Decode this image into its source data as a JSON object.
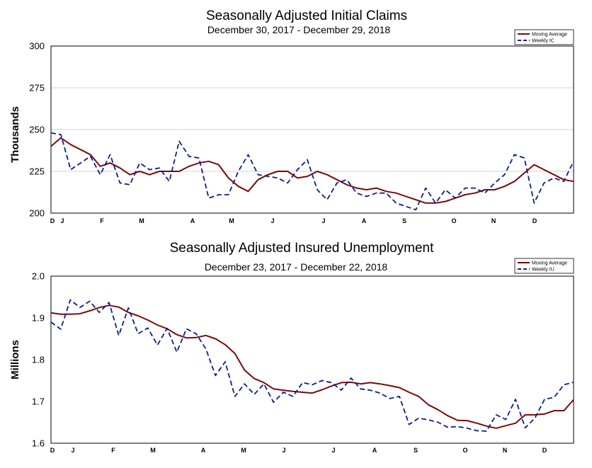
{
  "colors": {
    "moving_average": "#7a0a0a",
    "weekly": "#0b1f8a",
    "grid": "#d0d0d0"
  },
  "chart_data": [
    {
      "type": "line",
      "title": "Seasonally Adjusted Initial Claims",
      "subtitle": "December 30, 2017 - December 29, 2018",
      "ylabel": "Thousands",
      "ylim": [
        200,
        300
      ],
      "yticks": [
        "200",
        "225",
        "250",
        "275",
        "300"
      ],
      "xticks": [
        "D",
        "J",
        "F",
        "M",
        "A",
        "M",
        "J",
        "J",
        "A",
        "S",
        "O",
        "N",
        "D"
      ],
      "grid": true,
      "legend": "top-right",
      "series": [
        {
          "name": "Moving Average",
          "style": "solid",
          "values": [
            240,
            245,
            241,
            238,
            235,
            228,
            230,
            227,
            223,
            225,
            223,
            225,
            225,
            225,
            228,
            230,
            231,
            229,
            221,
            216,
            213,
            220,
            223,
            225,
            225,
            221,
            222,
            225,
            223,
            220,
            217,
            215,
            214,
            215,
            213,
            212,
            210,
            208,
            206,
            206,
            207,
            209,
            211,
            212,
            214,
            214,
            216,
            219,
            224,
            229,
            226,
            223,
            220,
            219
          ]
        },
        {
          "name": "Weekly IC",
          "style": "dashed",
          "values": [
            248,
            247,
            226,
            230,
            234,
            223,
            235,
            218,
            217,
            230,
            226,
            227,
            219,
            243,
            234,
            233,
            209,
            211,
            211,
            225,
            235,
            223,
            222,
            221,
            218,
            226,
            232,
            214,
            208,
            218,
            220,
            212,
            210,
            212,
            212,
            206,
            204,
            202,
            215,
            206,
            214,
            209,
            215,
            215,
            212,
            218,
            223,
            235,
            233,
            206,
            218,
            221,
            219,
            231
          ]
        }
      ]
    },
    {
      "type": "line",
      "title": "Seasonally Adjusted Insured Unemployment",
      "subtitle": "December 23, 2017 - December 22, 2018",
      "ylabel": "Millions",
      "ylim": [
        1.6,
        2.0
      ],
      "yticks": [
        "1.6",
        "1.7",
        "1.8",
        "1.9",
        "2.0"
      ],
      "xticks": [
        "D",
        "J",
        "F",
        "M",
        "A",
        "M",
        "J",
        "J",
        "A",
        "S",
        "O",
        "N",
        "D"
      ],
      "grid": false,
      "legend": "top-right",
      "series": [
        {
          "name": "Moving Average",
          "style": "solid",
          "values": [
            1.912,
            1.909,
            1.909,
            1.91,
            1.917,
            1.925,
            1.93,
            1.926,
            1.913,
            1.905,
            1.895,
            1.883,
            1.874,
            1.86,
            1.852,
            1.853,
            1.858,
            1.85,
            1.836,
            1.815,
            1.775,
            1.755,
            1.745,
            1.73,
            1.727,
            1.724,
            1.722,
            1.72,
            1.728,
            1.737,
            1.745,
            1.746,
            1.742,
            1.745,
            1.742,
            1.738,
            1.733,
            1.722,
            1.712,
            1.692,
            1.68,
            1.666,
            1.655,
            1.654,
            1.648,
            1.641,
            1.636,
            1.642,
            1.648,
            1.668,
            1.668,
            1.67,
            1.678,
            1.678,
            1.704
          ]
        },
        {
          "name": "Weekly IU",
          "style": "dashed",
          "values": [
            1.89,
            1.873,
            1.943,
            1.925,
            1.94,
            1.913,
            1.937,
            1.858,
            1.924,
            1.862,
            1.876,
            1.835,
            1.875,
            1.818,
            1.874,
            1.862,
            1.826,
            1.762,
            1.795,
            1.712,
            1.742,
            1.717,
            1.742,
            1.698,
            1.722,
            1.712,
            1.745,
            1.74,
            1.75,
            1.745,
            1.727,
            1.756,
            1.73,
            1.727,
            1.72,
            1.707,
            1.712,
            1.645,
            1.66,
            1.656,
            1.65,
            1.638,
            1.64,
            1.636,
            1.63,
            1.629,
            1.668,
            1.657,
            1.705,
            1.637,
            1.66,
            1.705,
            1.71,
            1.74,
            1.746
          ]
        }
      ]
    }
  ]
}
